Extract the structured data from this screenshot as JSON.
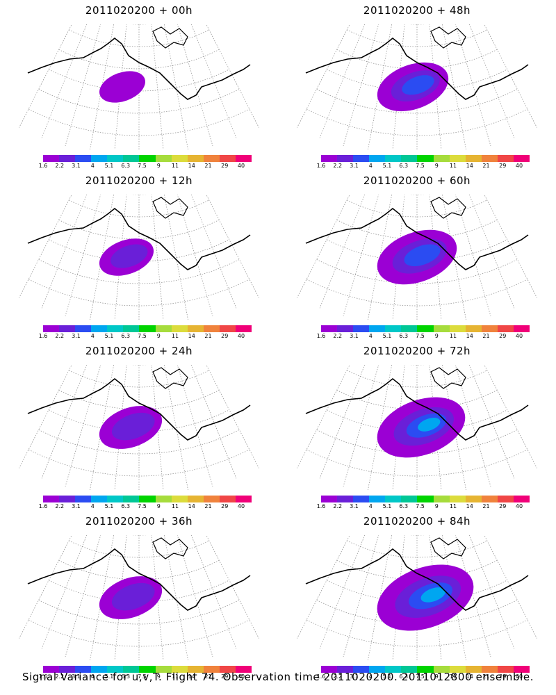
{
  "panels": [
    {
      "title": "2011020200 + 00h",
      "level": 1
    },
    {
      "title": "2011020200 + 48h",
      "level": 4
    },
    {
      "title": "2011020200 + 12h",
      "level": 2
    },
    {
      "title": "2011020200 + 60h",
      "level": 5
    },
    {
      "title": "2011020200 + 24h",
      "level": 3
    },
    {
      "title": "2011020200 + 72h",
      "level": 6
    },
    {
      "title": "2011020200 + 36h",
      "level": 3
    },
    {
      "title": "2011020200 + 84h",
      "level": 7
    }
  ],
  "colorbar": {
    "labels": [
      "1.6",
      "2.2",
      "3.1",
      "4",
      "5.1",
      "6.3",
      "7.5",
      "9",
      "11",
      "14",
      "21",
      "29",
      "40"
    ],
    "colors": [
      "#9b00d4",
      "#6a1fd8",
      "#2b4cf2",
      "#00a6f0",
      "#00c7c7",
      "#00c796",
      "#00d400",
      "#a6dc3c",
      "#dcdc3c",
      "#e6b432",
      "#f0823c",
      "#f04646",
      "#f00078"
    ]
  },
  "footer": "Signal Variance for u,v,T. Flight 74. Observation time 2011020200. 2011012800 ensemble."
}
